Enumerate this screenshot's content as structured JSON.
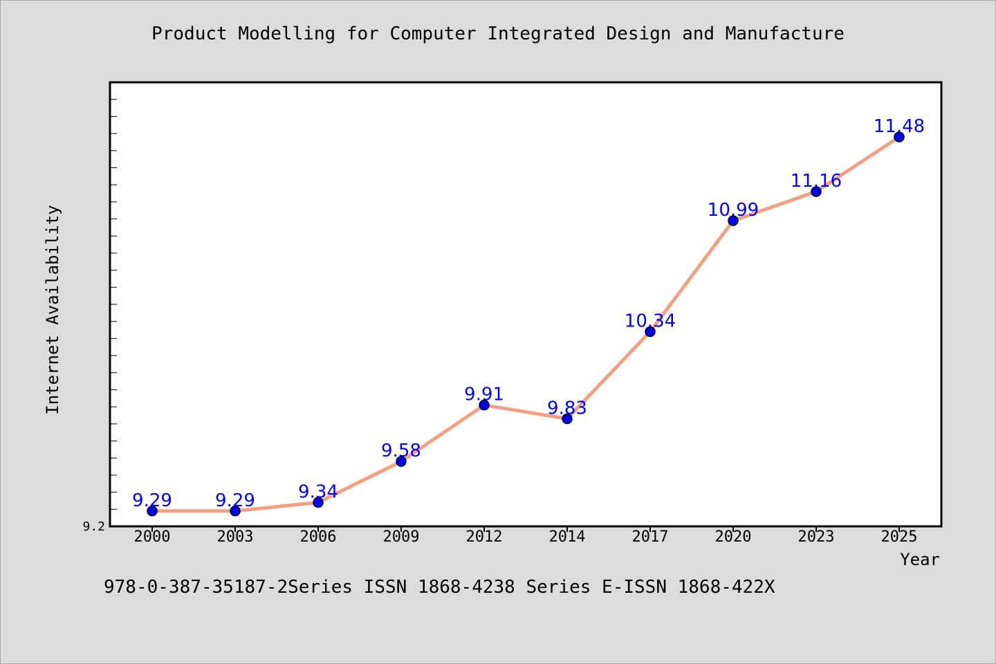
{
  "chart_data": {
    "type": "line",
    "title": "Product Modelling for Computer Integrated Design and Manufacture",
    "xlabel": "Year",
    "ylabel": "Internet Availability",
    "categories": [
      "2000",
      "2003",
      "2006",
      "2009",
      "2012",
      "2014",
      "2017",
      "2020",
      "2023",
      "2025"
    ],
    "values": [
      9.29,
      9.29,
      9.34,
      9.58,
      9.91,
      9.83,
      10.34,
      10.99,
      11.16,
      11.48
    ],
    "value_labels": [
      "9.29",
      "9.29",
      "9.34",
      "9.58",
      "9.91",
      "9.83",
      "10.34",
      "10.99",
      "11.16",
      "11.48"
    ],
    "ytick_label": "9.2",
    "ylim": [
      9.2,
      11.8
    ],
    "grid": false,
    "line_color": "#f4a080",
    "marker_color": "#0000ff"
  },
  "footnote": "978-0-387-35187-2Series ISSN 1868-4238 Series E-ISSN 1868-422X"
}
